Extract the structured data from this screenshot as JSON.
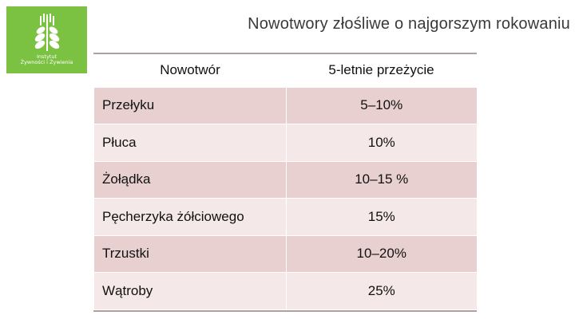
{
  "logo": {
    "icon": "wheat-leaf-icon",
    "line1": "Instytut",
    "line2": "Żywności i Żywienia",
    "color": "#7cc242"
  },
  "title": "Nowotwory złośliwe o najgorszym rokowaniu",
  "table": {
    "headers": [
      "Nowotwór",
      "5-letnie przeżycie"
    ],
    "rows": [
      {
        "name": "Przełyku",
        "survival": "5–10%"
      },
      {
        "name": "Płuca",
        "survival": "10%"
      },
      {
        "name": "Żołądka",
        "survival": "10–15 %"
      },
      {
        "name": "Pęcherzyka żółciowego",
        "survival": "15%"
      },
      {
        "name": "Trzustki",
        "survival": "10–20%"
      },
      {
        "name": "Wątroby",
        "survival": "25%"
      }
    ]
  },
  "colors": {
    "row_dark": "#e8d0d0",
    "row_light": "#f4e8e8",
    "rule": "#b0a0a0"
  }
}
